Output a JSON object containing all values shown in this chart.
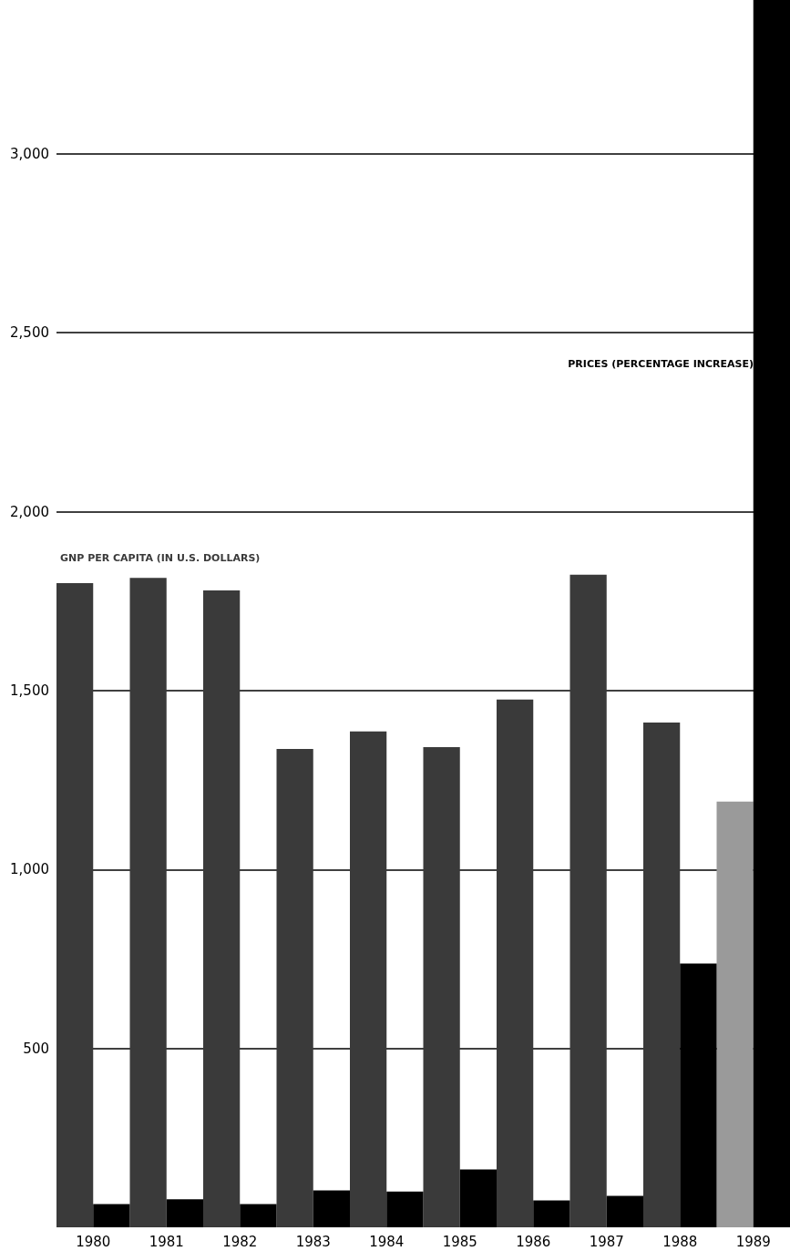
{
  "chart_data": {
    "type": "bar",
    "categories": [
      "1980",
      "1981",
      "1982",
      "1983",
      "1984",
      "1985",
      "1986",
      "1987",
      "1988",
      "1989"
    ],
    "series": [
      {
        "name": "GNP PER CAPITA (IN U.S. DOLLARS)",
        "color": "#3a3a3a",
        "colors": [
          "#3a3a3a",
          "#3a3a3a",
          "#3a3a3a",
          "#3a3a3a",
          "#3a3a3a",
          "#3a3a3a",
          "#3a3a3a",
          "#3a3a3a",
          "#3a3a3a",
          "#9a9a9a"
        ],
        "values": [
          1800,
          1815,
          1780,
          1337,
          1386,
          1342,
          1475,
          1824,
          1411,
          1190
        ]
      },
      {
        "name": "PRICES (PERCENTAGE INCREASE)",
        "color": "#000000",
        "values": [
          65,
          78,
          65,
          103,
          100,
          162,
          75,
          88,
          737,
          3430
        ]
      }
    ],
    "ylim": [
      0,
      3430
    ],
    "yticks": [
      {
        "value": 500,
        "label": "500"
      },
      {
        "value": 1000,
        "label": "1,000"
      },
      {
        "value": 1500,
        "label": "1,500"
      },
      {
        "value": 2000,
        "label": "2,000"
      },
      {
        "value": 2500,
        "label": "2,500"
      },
      {
        "value": 3000,
        "label": "3,000"
      }
    ],
    "grid": "y",
    "legend": false
  }
}
